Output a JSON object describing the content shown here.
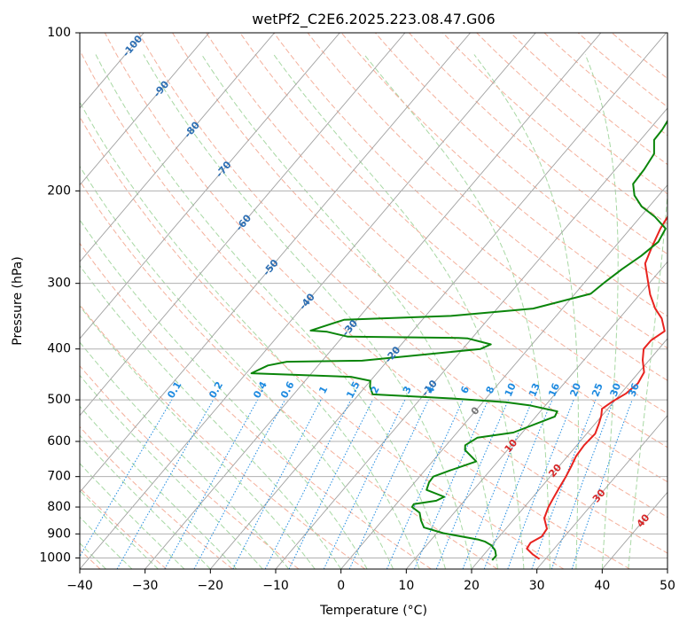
{
  "chart_data": {
    "type": "line",
    "title": "wetPf2_C2E6.2025.223.08.47.G06",
    "xlabel": "Temperature (°C)",
    "ylabel": "Pressure (hPa)",
    "xlim": [
      -40,
      50
    ],
    "ylim": [
      1050,
      100
    ],
    "y_scale": "log",
    "grid": true,
    "x_ticks": [
      -40,
      -30,
      -20,
      -10,
      0,
      10,
      20,
      30,
      40,
      50
    ],
    "y_ticks": [
      1000,
      900,
      800,
      700,
      600,
      500,
      400,
      300,
      200,
      100
    ],
    "series": [
      {
        "role": "temperature",
        "color": "#e8231f",
        "points": [
          [
            29.1,
            1005
          ],
          [
            27.5,
            985
          ],
          [
            25.8,
            960
          ],
          [
            25.6,
            935
          ],
          [
            26.5,
            910
          ],
          [
            26.3,
            880
          ],
          [
            24.5,
            840
          ],
          [
            23.7,
            800
          ],
          [
            23.3,
            770
          ],
          [
            22.9,
            740
          ],
          [
            22.4,
            700
          ],
          [
            21.9,
            670
          ],
          [
            21.3,
            640
          ],
          [
            21.1,
            610
          ],
          [
            21.3,
            580
          ],
          [
            20.6,
            556
          ],
          [
            19.9,
            536
          ],
          [
            19.1,
            520
          ],
          [
            19.8,
            503
          ],
          [
            20.8,
            486
          ],
          [
            21.3,
            465
          ],
          [
            20.8,
            443
          ],
          [
            19.0,
            420
          ],
          [
            17.7,
            400
          ],
          [
            17.7,
            385
          ],
          [
            18.6,
            370
          ],
          [
            16.5,
            350
          ],
          [
            14.2,
            335
          ],
          [
            11.6,
            315
          ],
          [
            9.4,
            296
          ],
          [
            6.8,
            275
          ],
          [
            5.7,
            256
          ],
          [
            4.6,
            236
          ],
          [
            3.9,
            217
          ],
          [
            1.6,
            203
          ],
          [
            -0.6,
            190
          ],
          [
            -3.2,
            174
          ],
          [
            -4.9,
            158
          ],
          [
            -5.9,
            144
          ],
          [
            -7.5,
            130
          ],
          [
            -8.0,
            121
          ],
          [
            -9.5,
            112
          ],
          [
            -9.4,
            107
          ],
          [
            -5.2,
            102
          ],
          [
            -3.0,
            100
          ]
        ]
      },
      {
        "role": "dewpoint",
        "color": "#0a850a",
        "points": [
          [
            22.0,
            1010
          ],
          [
            22.0,
            990
          ],
          [
            21.2,
            968
          ],
          [
            20.0,
            947
          ],
          [
            18.5,
            931
          ],
          [
            17.1,
            922
          ],
          [
            11.0,
            897
          ],
          [
            7.3,
            875
          ],
          [
            5.9,
            848
          ],
          [
            4.7,
            820
          ],
          [
            2.8,
            800
          ],
          [
            2.7,
            790
          ],
          [
            5.7,
            778
          ],
          [
            6.4,
            765
          ],
          [
            2.8,
            742
          ],
          [
            2.2,
            718
          ],
          [
            2.1,
            700
          ],
          [
            3.9,
            681
          ],
          [
            6.7,
            655
          ],
          [
            3.5,
            623
          ],
          [
            2.9,
            610
          ],
          [
            3.8,
            590
          ],
          [
            8.6,
            577
          ],
          [
            12.9,
            538
          ],
          [
            12.6,
            526
          ],
          [
            7.5,
            512
          ],
          [
            3.5,
            505
          ],
          [
            -5.0,
            497
          ],
          [
            -17.9,
            488
          ],
          [
            -19.3,
            472
          ],
          [
            -20.0,
            460
          ],
          [
            -23.5,
            452
          ],
          [
            -30.3,
            449
          ],
          [
            -39.2,
            445
          ],
          [
            -37.7,
            430
          ],
          [
            -35.3,
            423
          ],
          [
            -23.9,
            421
          ],
          [
            -7.3,
            400
          ],
          [
            -6.3,
            392
          ],
          [
            -10.6,
            382
          ],
          [
            -12.1,
            381
          ],
          [
            -29.2,
            379
          ],
          [
            -33.0,
            371
          ],
          [
            -35.7,
            369
          ],
          [
            -32.0,
            352
          ],
          [
            -16.1,
            346
          ],
          [
            -4.5,
            335
          ],
          [
            2.4,
            314
          ],
          [
            3.1,
            298
          ],
          [
            4.0,
            282
          ],
          [
            5.2,
            266
          ],
          [
            6.0,
            250
          ],
          [
            5.4,
            236
          ],
          [
            2.2,
            224
          ],
          [
            -1.2,
            214
          ],
          [
            -3.7,
            204
          ],
          [
            -5.4,
            194
          ],
          [
            -5.6,
            182
          ],
          [
            -6.1,
            170
          ],
          [
            -7.9,
            160
          ],
          [
            -8.0,
            153
          ],
          [
            -8.4,
            146
          ],
          [
            -8.2,
            138
          ],
          [
            -7.9,
            132
          ],
          [
            -8.6,
            126
          ],
          [
            -8.8,
            120
          ],
          [
            -9.6,
            114
          ],
          [
            -9.4,
            108
          ],
          [
            -9.7,
            104
          ],
          [
            -8.5,
            101
          ],
          [
            -5.9,
            100
          ]
        ]
      }
    ],
    "mixing_ratio_labels": [
      "0.1",
      "0.2",
      "0.4",
      "0.6",
      "1",
      "1.5",
      "2",
      "3",
      "4",
      "6",
      "8",
      "10",
      "13",
      "16",
      "20",
      "25",
      "30",
      "36"
    ],
    "mixing_ratio_values": [
      0.1,
      0.2,
      0.4,
      0.6,
      1,
      1.5,
      2,
      3,
      4,
      6,
      8,
      10,
      13,
      16,
      20,
      25,
      30,
      36
    ],
    "isotherm_labels": [
      "-100",
      "-90",
      "-80",
      "-70",
      "-60",
      "-50",
      "-40",
      "-30",
      "-20",
      "-10"
    ],
    "isotherm_values": [
      -100,
      -90,
      -80,
      -70,
      -60,
      -50,
      -40,
      -30,
      -20,
      -10
    ],
    "isotherm_label_pressures": [
      106,
      128,
      153,
      182,
      230,
      280,
      325,
      365,
      410,
      475
    ],
    "red_labels": [
      "10",
      "20",
      "30",
      "40"
    ],
    "red_label_values": [
      10,
      20,
      30,
      40
    ],
    "red_label_pressures": [
      612,
      682,
      762,
      850
    ],
    "zero_label": "0",
    "colors": {
      "grid": "#b0b0b0",
      "isotherm": "#a0a0a0",
      "dry_adiabat": "#f4b09c",
      "moist_adiabat": "#a8d8a4",
      "mixing_ratio": "#1f8be0",
      "isotherm_label": "#2c6eb3",
      "red_label": "#d62728",
      "zero_label": "#777777",
      "tan": "#d8c0a0"
    }
  }
}
